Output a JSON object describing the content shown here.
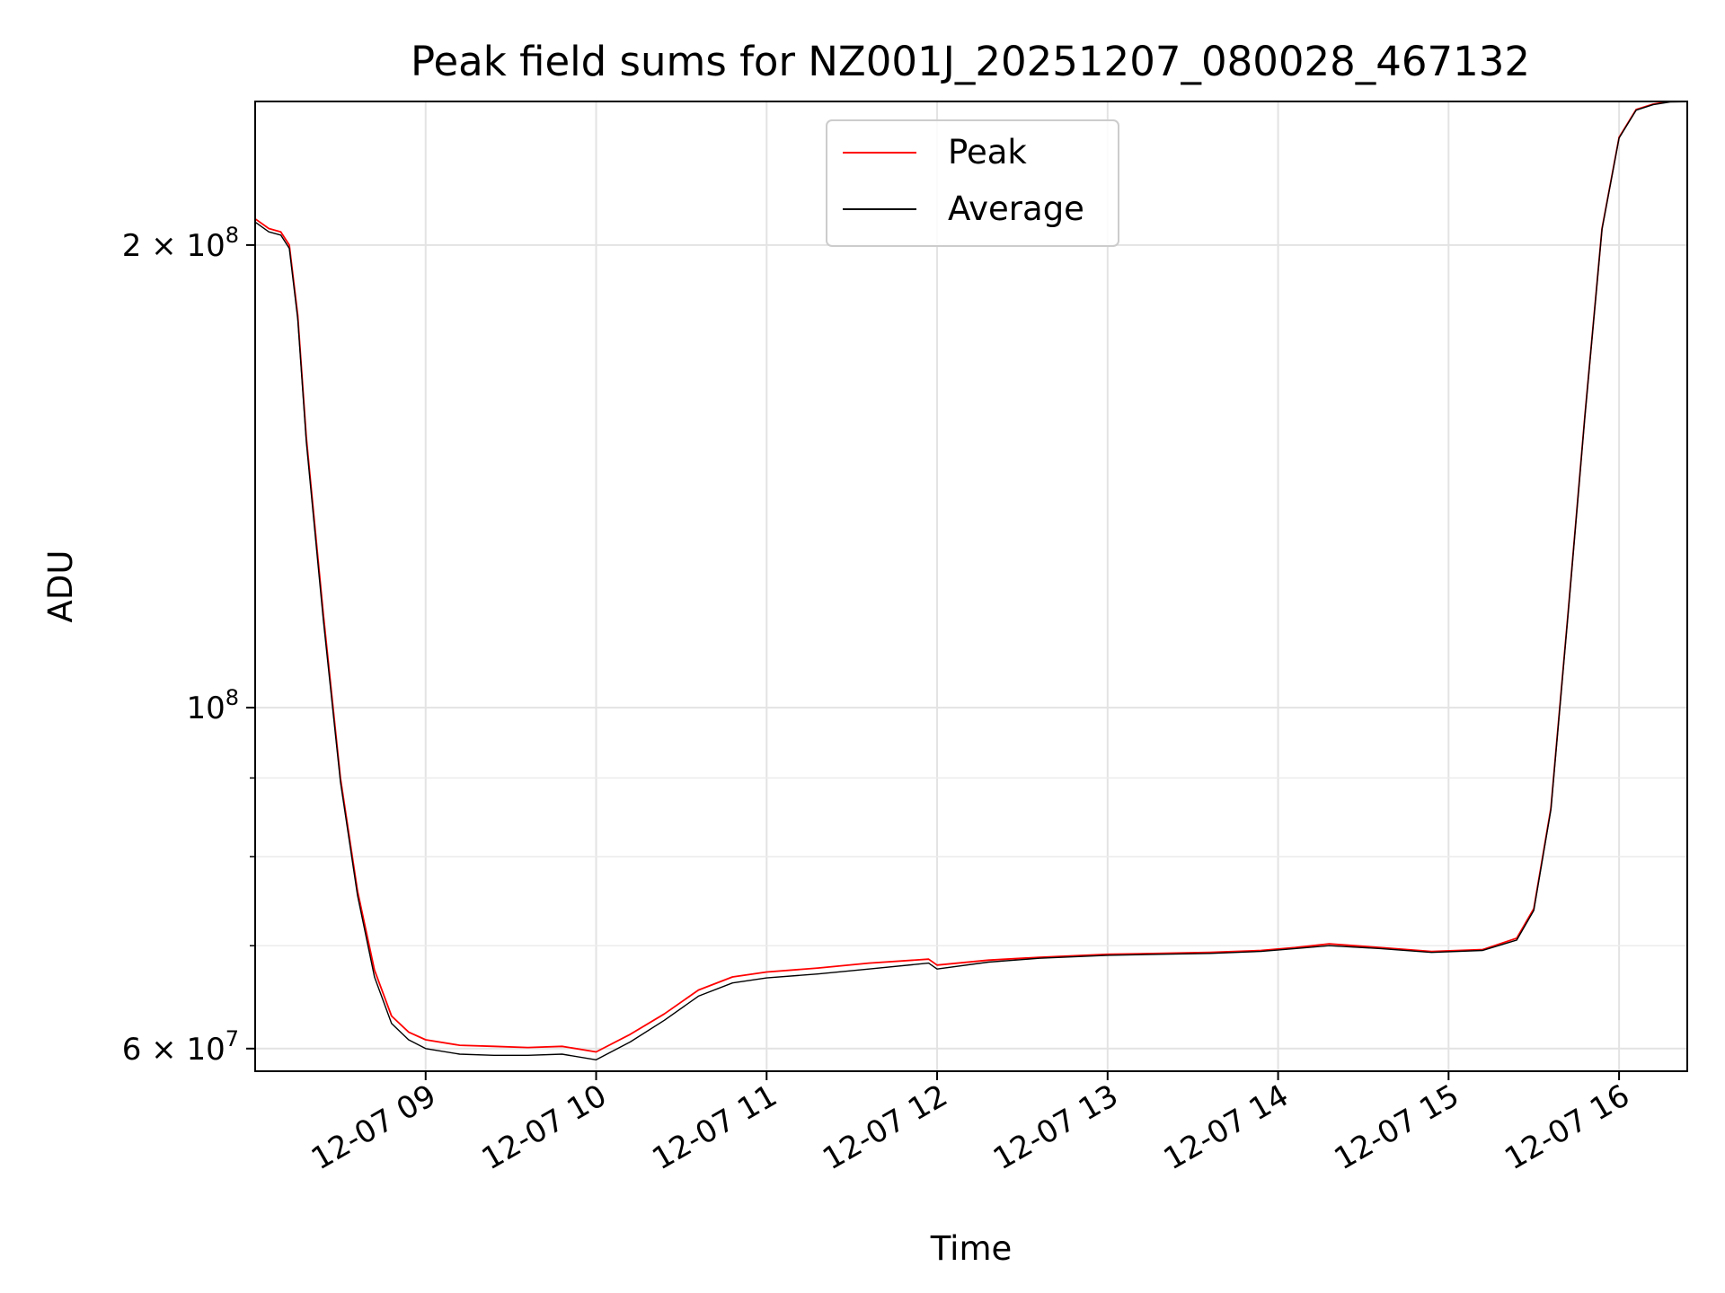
{
  "chart_data": {
    "type": "line",
    "title": "Peak field sums for NZ001J_20251207_080028_467132",
    "xlabel": "Time",
    "ylabel": "ADU",
    "yscale": "log",
    "ylim": [
      58000000,
      248000000
    ],
    "xlim": [
      8.0,
      16.4
    ],
    "grid": true,
    "legend_position": "upper center",
    "x_ticks": [
      {
        "value": 9,
        "label": "12-07 09"
      },
      {
        "value": 10,
        "label": "12-07 10"
      },
      {
        "value": 11,
        "label": "12-07 11"
      },
      {
        "value": 12,
        "label": "12-07 12"
      },
      {
        "value": 13,
        "label": "12-07 13"
      },
      {
        "value": 14,
        "label": "12-07 14"
      },
      {
        "value": 15,
        "label": "12-07 15"
      },
      {
        "value": 16,
        "label": "12-07 16"
      }
    ],
    "y_ticks_major": [
      {
        "value": 60000000,
        "base": "6 × 10",
        "exp": "7"
      },
      {
        "value": 100000000,
        "base": "10",
        "exp": "8"
      },
      {
        "value": 200000000,
        "base": "2 × 10",
        "exp": "8"
      }
    ],
    "y_ticks_minor": [
      70000000,
      80000000,
      90000000
    ],
    "series": [
      {
        "name": "Peak",
        "color": "#ff0000",
        "x": [
          8.0,
          8.08,
          8.15,
          8.2,
          8.25,
          8.3,
          8.4,
          8.5,
          8.6,
          8.7,
          8.8,
          8.9,
          9.0,
          9.2,
          9.4,
          9.6,
          9.8,
          10.0,
          10.2,
          10.4,
          10.6,
          10.8,
          11.0,
          11.3,
          11.6,
          11.95,
          12.0,
          12.3,
          12.6,
          13.0,
          13.3,
          13.6,
          13.9,
          14.1,
          14.3,
          14.6,
          14.9,
          15.2,
          15.4,
          15.5,
          15.6,
          15.7,
          15.8,
          15.9,
          16.0,
          16.1,
          16.2,
          16.3,
          16.4
        ],
        "y": [
          208000000,
          205000000,
          204000000,
          200000000,
          180000000,
          150000000,
          115000000,
          90000000,
          76000000,
          67500000,
          63000000,
          61500000,
          60800000,
          60300000,
          60200000,
          60100000,
          60200000,
          59700000,
          61300000,
          63200000,
          65500000,
          66800000,
          67300000,
          67700000,
          68200000,
          68600000,
          68000000,
          68500000,
          68800000,
          69100000,
          69200000,
          69300000,
          69500000,
          69800000,
          70200000,
          69800000,
          69400000,
          69600000,
          70800000,
          74000000,
          86000000,
          115000000,
          155000000,
          205000000,
          235000000,
          245000000,
          247000000,
          248000000,
          248000000
        ]
      },
      {
        "name": "Average",
        "color": "#000000",
        "x": [
          8.0,
          8.08,
          8.15,
          8.2,
          8.25,
          8.3,
          8.4,
          8.5,
          8.6,
          8.7,
          8.8,
          8.9,
          9.0,
          9.2,
          9.4,
          9.6,
          9.8,
          10.0,
          10.2,
          10.4,
          10.6,
          10.8,
          11.0,
          11.3,
          11.6,
          11.95,
          12.0,
          12.3,
          12.6,
          13.0,
          13.3,
          13.6,
          13.9,
          14.1,
          14.3,
          14.6,
          14.9,
          15.2,
          15.4,
          15.5,
          15.6,
          15.7,
          15.8,
          15.9,
          16.0,
          16.1,
          16.2,
          16.3,
          16.4
        ],
        "y": [
          207000000,
          204000000,
          203000000,
          199000000,
          179000000,
          149000000,
          114000000,
          89500000,
          75500000,
          66800000,
          62300000,
          60800000,
          60000000,
          59500000,
          59400000,
          59400000,
          59500000,
          59000000,
          60600000,
          62600000,
          64900000,
          66200000,
          66700000,
          67100000,
          67600000,
          68200000,
          67600000,
          68300000,
          68700000,
          69000000,
          69100000,
          69200000,
          69400000,
          69700000,
          70000000,
          69700000,
          69300000,
          69500000,
          70600000,
          73800000,
          85800000,
          114800000,
          154800000,
          204800000,
          234800000,
          244800000,
          246800000,
          247800000,
          247900000
        ]
      }
    ]
  }
}
